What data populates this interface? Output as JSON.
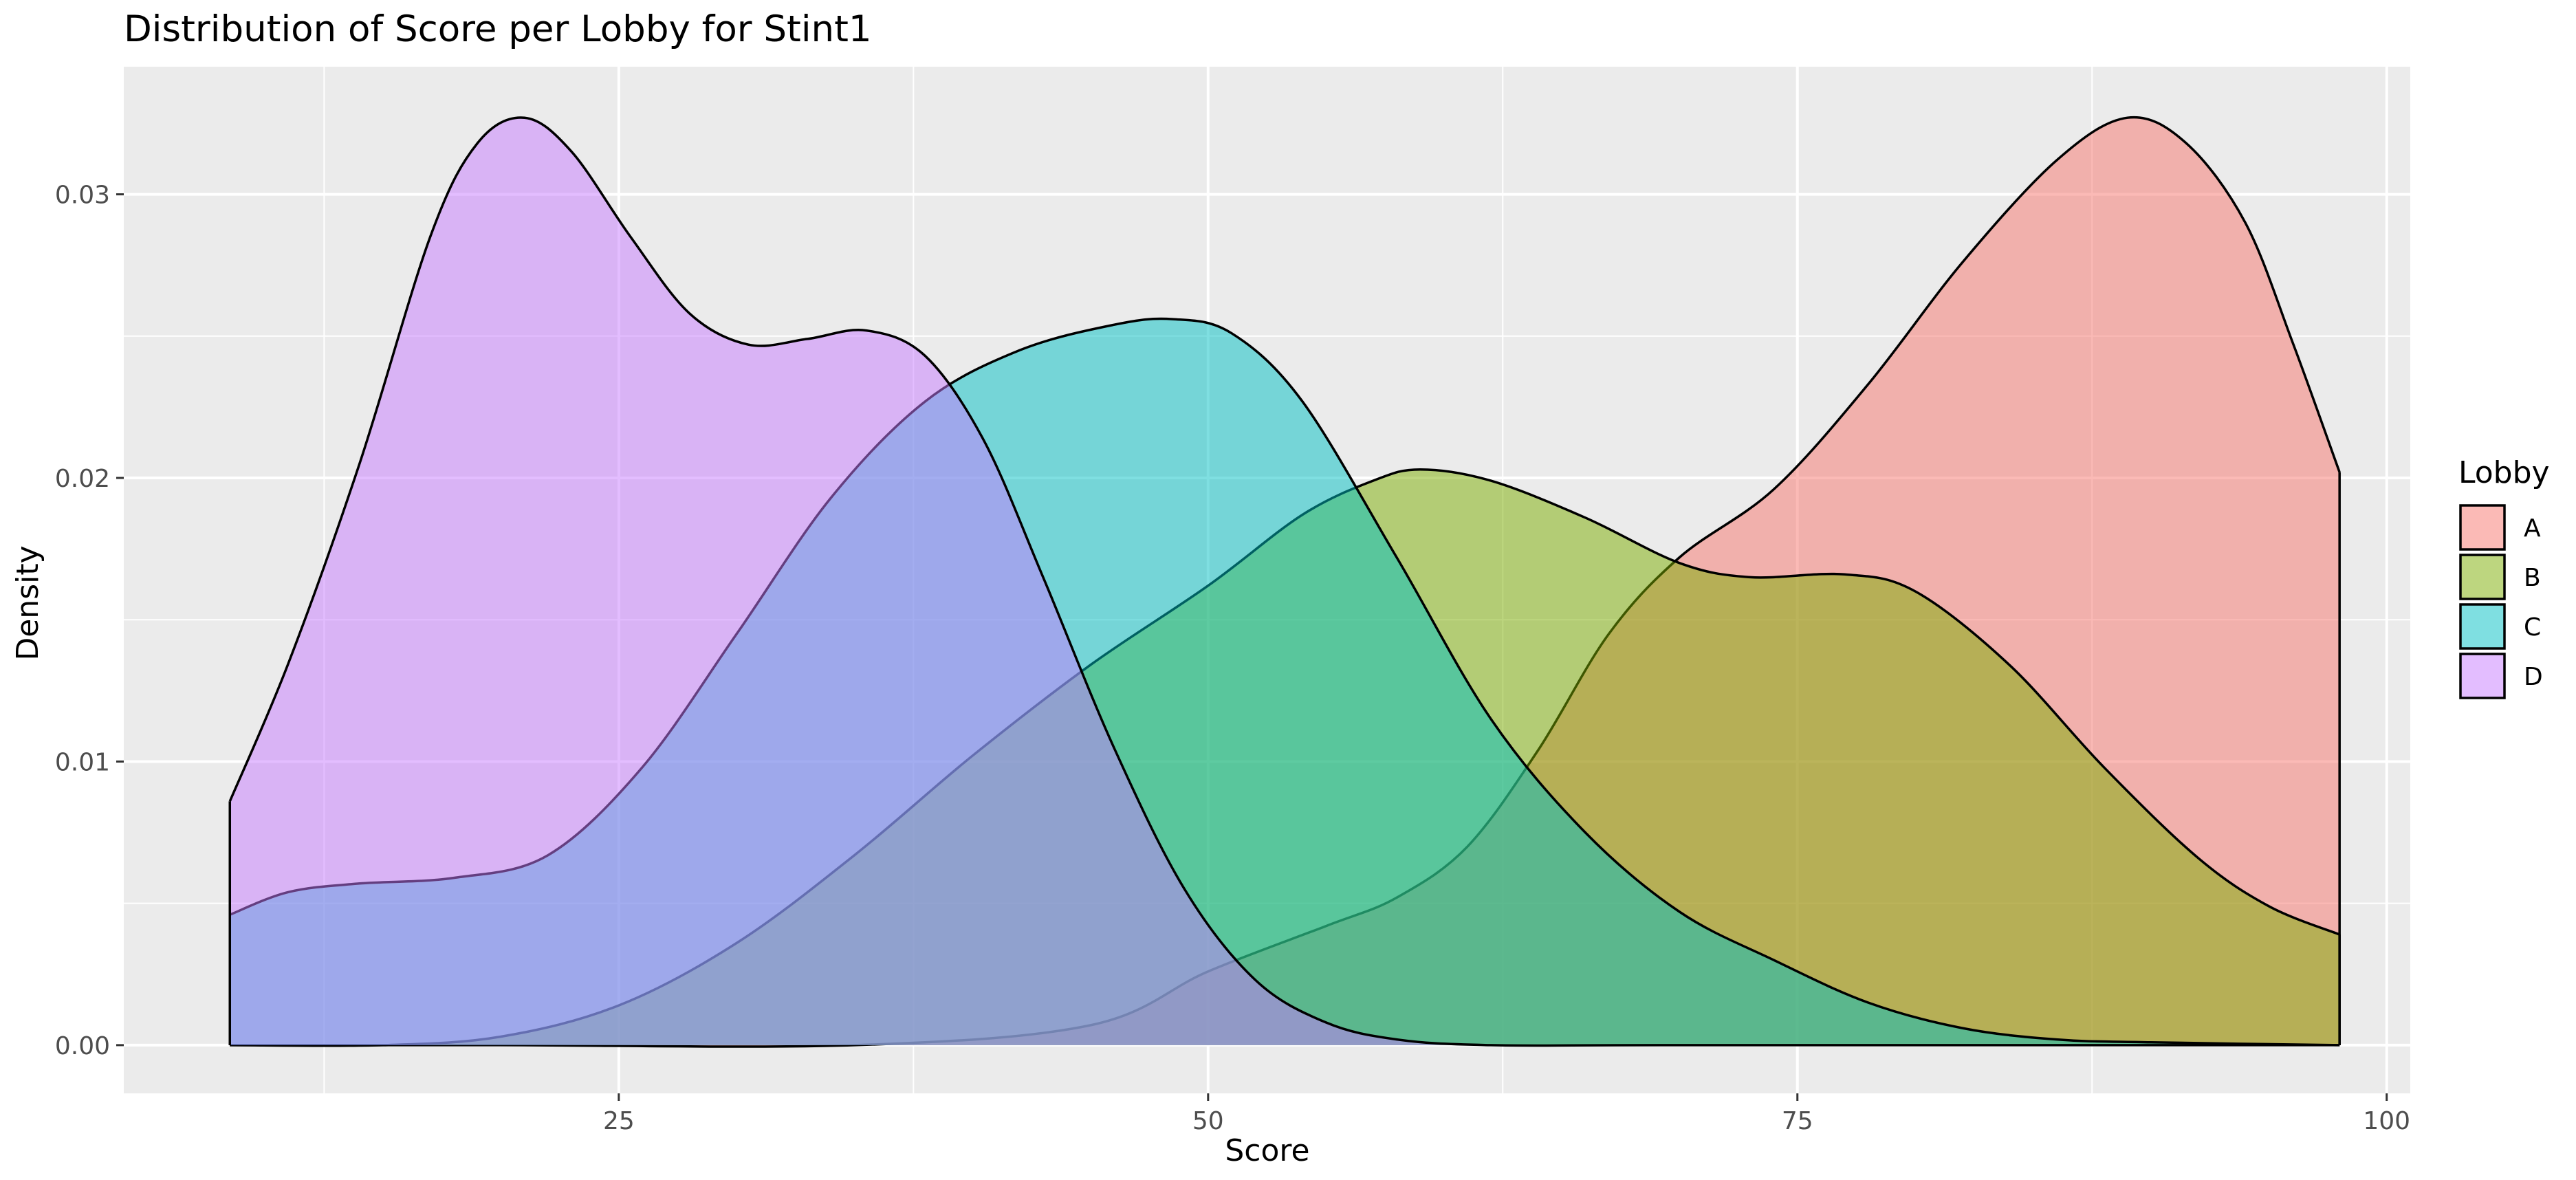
{
  "chart_data": {
    "type": "area",
    "subtype": "density",
    "title": "Distribution of Score per Lobby for Stint1",
    "xlabel": "Score",
    "ylabel": "Density",
    "xlim": [
      4,
      101
    ],
    "ylim": [
      -0.0017,
      0.0345
    ],
    "x_ticks": [
      25,
      50,
      75,
      100
    ],
    "x_tick_labels": [
      "25",
      "50",
      "75",
      "100"
    ],
    "y_ticks": [
      0.0,
      0.01,
      0.02,
      0.03
    ],
    "y_tick_labels": [
      "0.00",
      "0.01",
      "0.02",
      "0.03"
    ],
    "grid": true,
    "legend": {
      "title": "Lobby",
      "position": "right"
    },
    "series": [
      {
        "name": "A",
        "color": "#F8766D",
        "points": [
          [
            8.5,
            0.0
          ],
          [
            20,
            0.0
          ],
          [
            35,
            0.0
          ],
          [
            45,
            0.0007
          ],
          [
            50,
            0.0026
          ],
          [
            55,
            0.0042
          ],
          [
            58,
            0.0052
          ],
          [
            61,
            0.007
          ],
          [
            64,
            0.0104
          ],
          [
            67,
            0.0145
          ],
          [
            70,
            0.0172
          ],
          [
            74,
            0.0196
          ],
          [
            78,
            0.0233
          ],
          [
            82,
            0.0276
          ],
          [
            86,
            0.0312
          ],
          [
            89,
            0.0327
          ],
          [
            91.5,
            0.0318
          ],
          [
            94,
            0.029
          ],
          [
            96,
            0.0248
          ],
          [
            98,
            0.0202
          ]
        ]
      },
      {
        "name": "B",
        "color": "#7CAE00",
        "points": [
          [
            8.5,
            0.0
          ],
          [
            15,
            0.0
          ],
          [
            20,
            0.0003
          ],
          [
            25,
            0.0014
          ],
          [
            30,
            0.0036
          ],
          [
            35,
            0.0067
          ],
          [
            40,
            0.0102
          ],
          [
            45,
            0.0134
          ],
          [
            50,
            0.0162
          ],
          [
            54,
            0.0187
          ],
          [
            57,
            0.0199
          ],
          [
            59,
            0.0203
          ],
          [
            62,
            0.0199
          ],
          [
            66,
            0.0186
          ],
          [
            70,
            0.017
          ],
          [
            73,
            0.0165
          ],
          [
            77,
            0.0166
          ],
          [
            80,
            0.016
          ],
          [
            84,
            0.0134
          ],
          [
            88,
            0.0098
          ],
          [
            92,
            0.0066
          ],
          [
            95,
            0.0049
          ],
          [
            98,
            0.0039
          ]
        ]
      },
      {
        "name": "C",
        "color": "#00BFC4",
        "points": [
          [
            8.5,
            0.0046
          ],
          [
            11,
            0.0054
          ],
          [
            14,
            0.0057
          ],
          [
            18,
            0.0059
          ],
          [
            22,
            0.0067
          ],
          [
            26,
            0.0098
          ],
          [
            30,
            0.0145
          ],
          [
            34,
            0.0193
          ],
          [
            38,
            0.0227
          ],
          [
            42,
            0.0245
          ],
          [
            46,
            0.0254
          ],
          [
            48.5,
            0.0256
          ],
          [
            51,
            0.0251
          ],
          [
            54,
            0.0227
          ],
          [
            58,
            0.0172
          ],
          [
            62,
            0.0115
          ],
          [
            66,
            0.0075
          ],
          [
            70,
            0.0047
          ],
          [
            74,
            0.003
          ],
          [
            78,
            0.0015
          ],
          [
            82,
            0.0006
          ],
          [
            86,
            0.0002
          ],
          [
            90,
            0.0001
          ],
          [
            98,
            0.0
          ]
        ]
      },
      {
        "name": "D",
        "color": "#C77CFF",
        "points": [
          [
            8.5,
            0.0086
          ],
          [
            11,
            0.0135
          ],
          [
            14,
            0.0205
          ],
          [
            17,
            0.0285
          ],
          [
            19,
            0.0318
          ],
          [
            21,
            0.0327
          ],
          [
            23,
            0.0315
          ],
          [
            25.5,
            0.0285
          ],
          [
            28,
            0.0258
          ],
          [
            30.5,
            0.0247
          ],
          [
            33,
            0.0249
          ],
          [
            35.5,
            0.0252
          ],
          [
            38,
            0.0243
          ],
          [
            40.5,
            0.0213
          ],
          [
            43,
            0.0165
          ],
          [
            46,
            0.0105
          ],
          [
            49,
            0.0055
          ],
          [
            52,
            0.0023
          ],
          [
            55,
            0.0008
          ],
          [
            58,
            0.0002
          ],
          [
            62,
            0.0
          ],
          [
            70,
            0.0
          ],
          [
            98,
            0.0
          ]
        ]
      }
    ]
  }
}
